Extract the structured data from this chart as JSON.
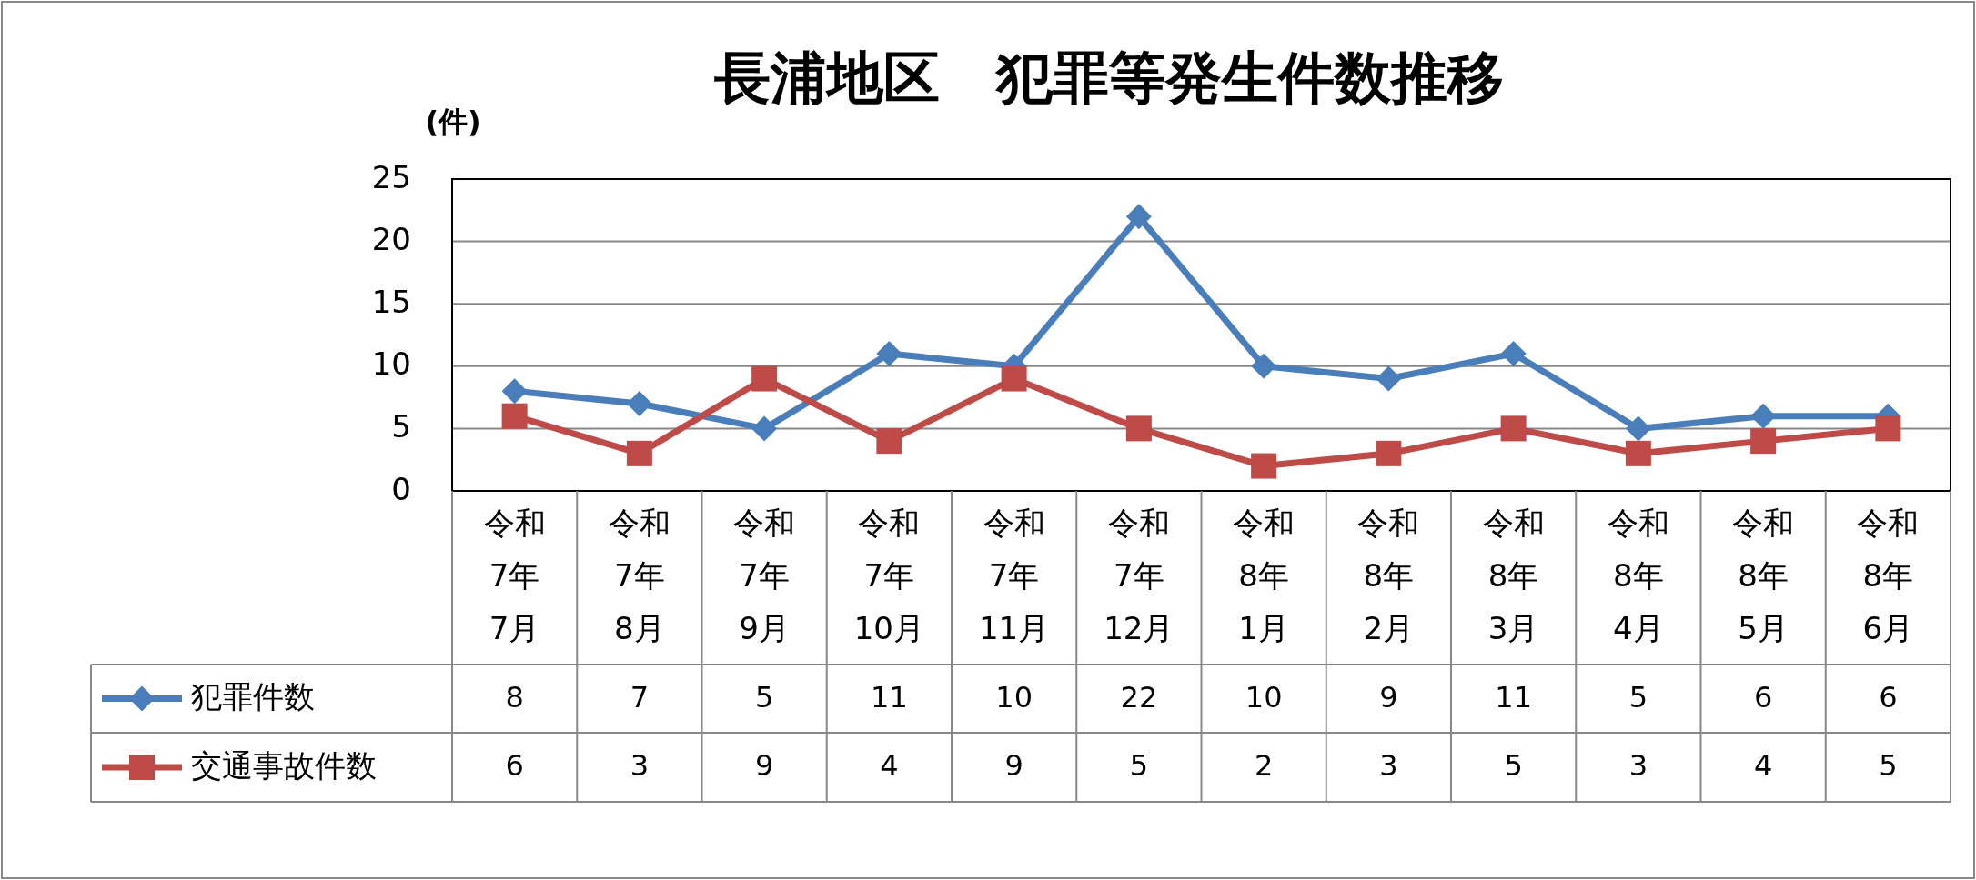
{
  "chart_data": {
    "type": "line",
    "title": "長浦地区　犯罪等発生件数推移",
    "ylabel": "(件)",
    "categories": [
      "令和\n7年\n7月",
      "令和\n7年\n8月",
      "令和\n7年\n9月",
      "令和\n7年\n10月",
      "令和\n7年\n11月",
      "令和\n7年\n12月",
      "令和\n8年\n1月",
      "令和\n8年\n2月",
      "令和\n8年\n3月",
      "令和\n8年\n4月",
      "令和\n8年\n5月",
      "令和\n8年\n6月"
    ],
    "series": [
      {
        "name": "犯罪件数",
        "color": "#4a7ebb",
        "marker": "diamond",
        "values": [
          8,
          7,
          5,
          11,
          10,
          22,
          10,
          9,
          11,
          5,
          6,
          6
        ]
      },
      {
        "name": "交通事故件数",
        "color": "#be4b48",
        "marker": "square",
        "values": [
          6,
          3,
          9,
          4,
          9,
          5,
          2,
          3,
          5,
          3,
          4,
          5
        ]
      }
    ],
    "ylim": [
      0,
      25
    ],
    "yticks": [
      0,
      5,
      10,
      15,
      20,
      25
    ],
    "grid": "y",
    "legend": "bottom",
    "data_labels": true,
    "line_style": "solid"
  }
}
